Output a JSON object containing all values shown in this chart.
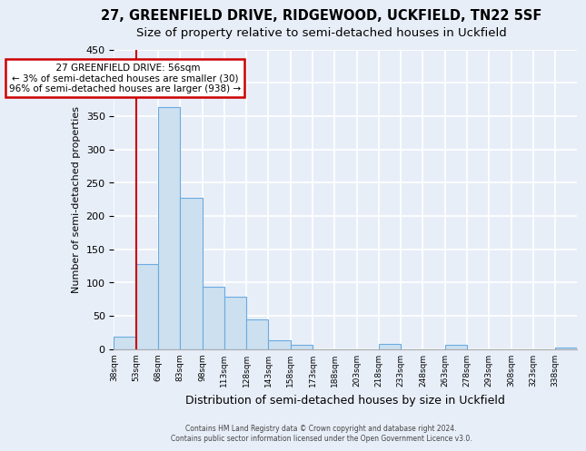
{
  "title": "27, GREENFIELD DRIVE, RIDGEWOOD, UCKFIELD, TN22 5SF",
  "subtitle": "Size of property relative to semi-detached houses in Uckfield",
  "xlabel": "Distribution of semi-detached houses by size in Uckfield",
  "ylabel": "Number of semi-detached properties",
  "bin_labels": [
    "38sqm",
    "53sqm",
    "68sqm",
    "83sqm",
    "98sqm",
    "113sqm",
    "128sqm",
    "143sqm",
    "158sqm",
    "173sqm",
    "188sqm",
    "203sqm",
    "218sqm",
    "233sqm",
    "248sqm",
    "263sqm",
    "278sqm",
    "293sqm",
    "308sqm",
    "323sqm",
    "338sqm"
  ],
  "bar_heights": [
    19,
    127,
    363,
    227,
    94,
    78,
    45,
    13,
    6,
    0,
    0,
    0,
    7,
    0,
    0,
    6,
    0,
    0,
    0,
    0,
    2
  ],
  "bar_color": "#cce0f0",
  "bar_edge_color": "#6aabe0",
  "annotation_title": "27 GREENFIELD DRIVE: 56sqm",
  "annotation_line1": "← 3% of semi-detached houses are smaller (30)",
  "annotation_line2": "96% of semi-detached houses are larger (938) →",
  "annotation_box_color": "#ffffff",
  "annotation_box_edge": "#cc0000",
  "marker_line_color": "#cc0000",
  "ylim": [
    0,
    450
  ],
  "yticks": [
    0,
    50,
    100,
    150,
    200,
    250,
    300,
    350,
    400,
    450
  ],
  "footer1": "Contains HM Land Registry data © Crown copyright and database right 2024.",
  "footer2": "Contains public sector information licensed under the Open Government Licence v3.0.",
  "background_color": "#e8eef8",
  "plot_bg_color": "#e8eef8",
  "grid_color": "#ffffff",
  "title_fontsize": 10.5,
  "subtitle_fontsize": 9.5,
  "ylabel_fontsize": 8,
  "xlabel_fontsize": 9
}
